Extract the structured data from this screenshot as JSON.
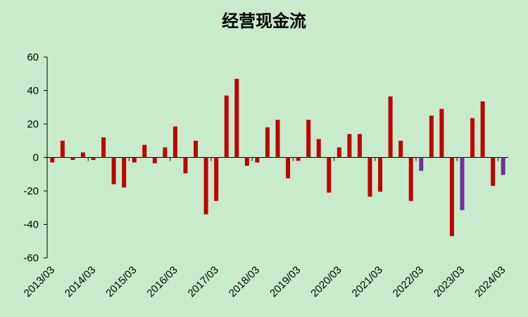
{
  "chart_data": {
    "type": "bar",
    "title": "经营现金流",
    "categories": [
      "2013/03",
      null,
      null,
      null,
      "2014/03",
      null,
      null,
      null,
      "2015/03",
      null,
      null,
      null,
      "2016/03",
      null,
      null,
      null,
      "2017/03",
      null,
      null,
      null,
      "2018/03",
      null,
      null,
      null,
      "2019/03",
      null,
      null,
      null,
      "2020/03",
      null,
      null,
      null,
      "2021/03",
      null,
      null,
      null,
      "2022/03",
      null,
      null,
      null,
      "2023/03",
      null,
      null,
      null,
      "2024/03"
    ],
    "values": [
      -3,
      10,
      -1.5,
      3,
      -1.5,
      12,
      -16,
      -18,
      -3,
      7.5,
      -3.5,
      6,
      18.5,
      -9.5,
      10,
      -34,
      -26,
      37,
      47,
      -5,
      -3,
      18,
      22.5,
      -12.5,
      -2,
      22.5,
      11,
      -21,
      6,
      14,
      14,
      -23.5,
      -20.5,
      36.5,
      10,
      -26,
      -8,
      25,
      29,
      -47,
      -31.5,
      23.5,
      33.5,
      -17,
      -10.5
    ],
    "colors": [
      "#c00000",
      "#c00000",
      "#c00000",
      "#c00000",
      "#c00000",
      "#c00000",
      "#c00000",
      "#c00000",
      "#c00000",
      "#c00000",
      "#c00000",
      "#c00000",
      "#c00000",
      "#c00000",
      "#c00000",
      "#c00000",
      "#c00000",
      "#c00000",
      "#c00000",
      "#c00000",
      "#c00000",
      "#c00000",
      "#c00000",
      "#c00000",
      "#c00000",
      "#c00000",
      "#c00000",
      "#c00000",
      "#c00000",
      "#c00000",
      "#c00000",
      "#c00000",
      "#c00000",
      "#c00000",
      "#c00000",
      "#c00000",
      "#7030a0",
      "#c00000",
      "#c00000",
      "#c00000",
      "#7030a0",
      "#c00000",
      "#c00000",
      "#c00000",
      "#7030a0"
    ],
    "ylim": [
      -60,
      60
    ],
    "yticks": [
      -60,
      -40,
      -20,
      0,
      20,
      40,
      60
    ]
  }
}
